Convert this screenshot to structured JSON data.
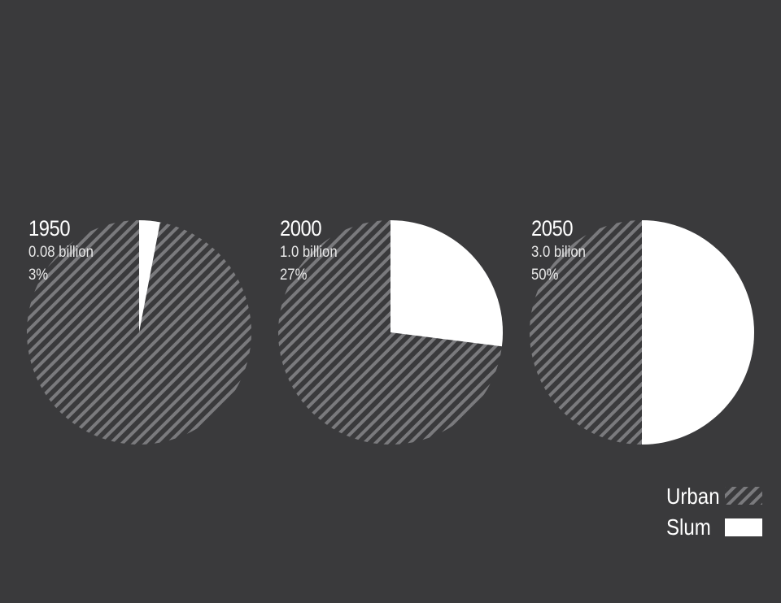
{
  "chart_data": {
    "type": "pie",
    "title": "",
    "series": [
      {
        "year": "1950",
        "amount_label": "0.08 billion",
        "percent_label": "3%",
        "slum_percent": 3
      },
      {
        "year": "2000",
        "amount_label": "1.0 billion",
        "percent_label": "27%",
        "slum_percent": 27
      },
      {
        "year": "2050",
        "amount_label": "3.0 bilion",
        "percent_label": "50%",
        "slum_percent": 50
      }
    ],
    "legend": {
      "placement": "bottom-right",
      "entries": [
        {
          "name": "Urban",
          "pattern": "diagonal-hatch"
        },
        {
          "name": "Slum",
          "pattern": "solid"
        }
      ]
    }
  },
  "colors": {
    "background": "#3a3a3c",
    "slum": "#ffffff",
    "urban_hatch": "#7a7a7d",
    "text": "#ffffff"
  }
}
